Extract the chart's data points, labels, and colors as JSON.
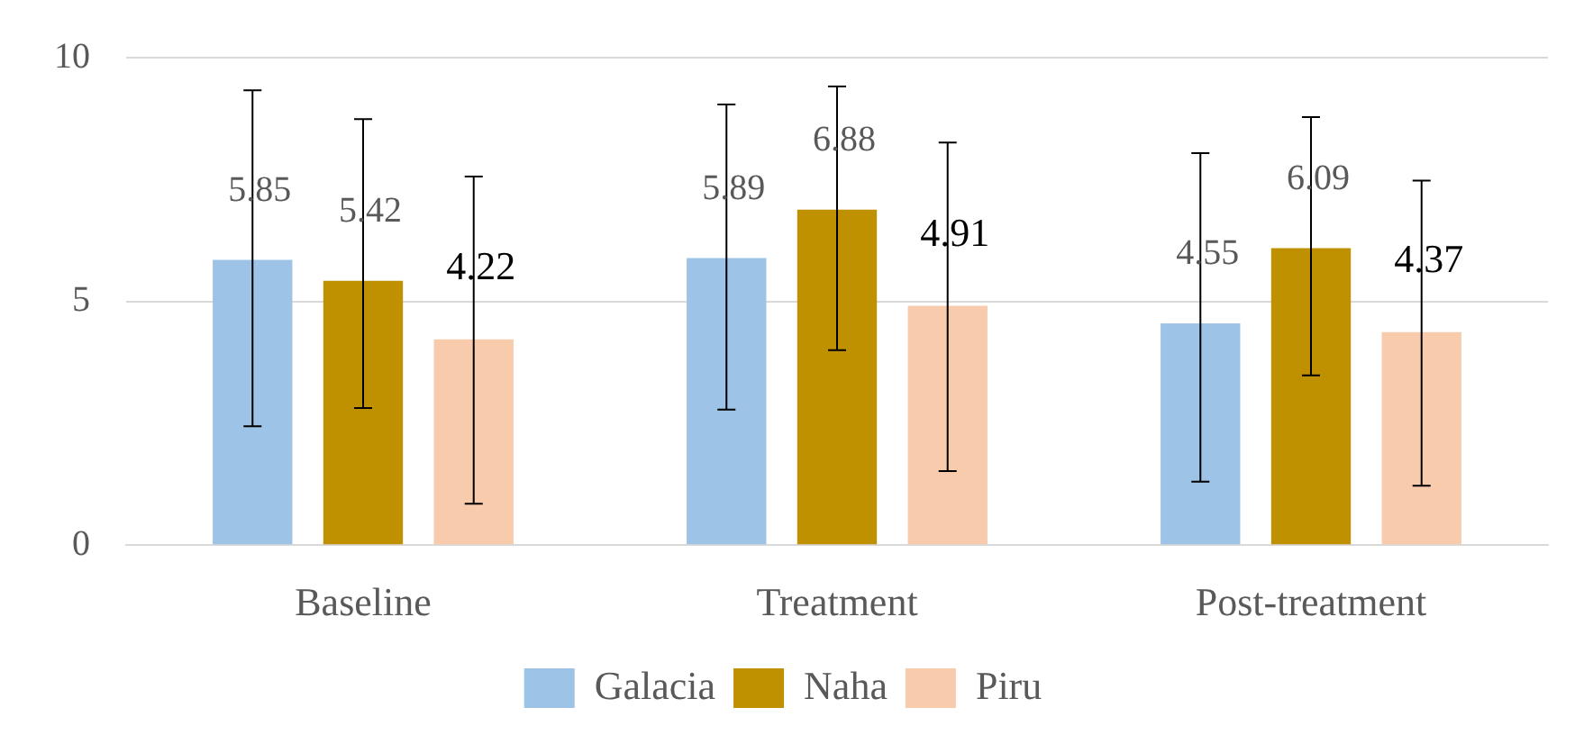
{
  "chart_data": {
    "type": "bar",
    "categories": [
      "Baseline",
      "Treatment",
      "Post-treatment"
    ],
    "series": [
      {
        "name": "Galacia",
        "color": "#9dc3e6",
        "values": [
          5.85,
          5.89,
          4.55
        ],
        "errors": [
          [
            2.44,
            9.33
          ],
          [
            2.78,
            9.04
          ],
          [
            1.3,
            8.04
          ]
        ]
      },
      {
        "name": "Naha",
        "color": "#bf9000",
        "values": [
          5.42,
          6.88,
          6.09
        ],
        "errors": [
          [
            2.81,
            8.74
          ],
          [
            4.0,
            9.41
          ],
          [
            3.48,
            8.78
          ]
        ]
      },
      {
        "name": "Piru",
        "color": "#f8cbad",
        "values": [
          4.22,
          4.91,
          4.37
        ],
        "errors": [
          [
            0.85,
            7.56
          ],
          [
            1.52,
            8.26
          ],
          [
            1.22,
            7.48
          ]
        ]
      }
    ],
    "ylim": [
      0,
      10
    ],
    "yticks": [
      0,
      5,
      10
    ],
    "grid": "y",
    "legend": "bottom",
    "data_labels": true
  }
}
